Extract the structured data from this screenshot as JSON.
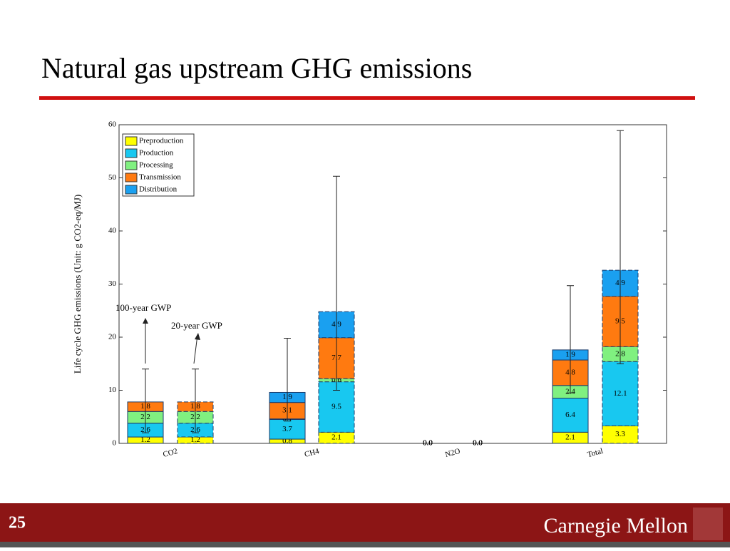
{
  "slide_title": "Natural gas upstream GHG emissions",
  "page_number": "25",
  "logo": "Carnegie Mellon",
  "chart_data": {
    "type": "stacked_bar",
    "ylabel": "Life cycle GHG emissions (Unit: g CO2-eq/MJ)",
    "categories": [
      "CO2",
      null,
      "CH4",
      null,
      "N2O",
      null,
      "Total",
      null
    ],
    "ylim": [
      0,
      60
    ],
    "yticks": [
      0,
      10,
      20,
      30,
      40,
      50,
      60
    ],
    "legend": "upper left",
    "annotations": [
      "100-year GWP",
      "20-year GWP"
    ],
    "series": [
      {
        "name": "Preproduction",
        "color": "#ffff00",
        "values": [
          1.2,
          1.2,
          0.8,
          2.1,
          0,
          0,
          2.1,
          3.3
        ],
        "value_labels": [
          "1.2",
          "1.2",
          "0.8",
          "2.1",
          "0.0",
          "0.0",
          "2.1",
          "3.3"
        ]
      },
      {
        "name": "Production",
        "color": "#18c8f0",
        "values": [
          2.6,
          2.6,
          3.7,
          9.5,
          0,
          0,
          6.4,
          12.1
        ],
        "value_labels": [
          "2.6",
          "2.6",
          "3.7",
          "9.5",
          "0.0",
          "0.0",
          "6.4",
          "12.1"
        ]
      },
      {
        "name": "Processing",
        "color": "#80f080",
        "values": [
          2.2,
          2.2,
          0.1,
          0.6,
          0,
          0,
          2.4,
          2.8
        ],
        "value_labels": [
          "2.2",
          "2.2",
          "0.1",
          "0.6",
          "0.0",
          "0.0",
          "2.4",
          "2.8"
        ]
      },
      {
        "name": "Transmission",
        "color": "#ff7a10",
        "values": [
          1.8,
          1.8,
          3.1,
          7.7,
          0,
          0,
          4.8,
          9.5
        ],
        "value_labels": [
          "1.8",
          "1.8",
          "3.1",
          "7.7",
          "0.0",
          "0.0",
          "4.8",
          "9.5"
        ]
      },
      {
        "name": "Distribution",
        "color": "#1aa0f0",
        "values": [
          null,
          null,
          1.9,
          4.9,
          0,
          0,
          1.9,
          4.9
        ],
        "value_labels": [
          null,
          null,
          "1.9",
          "4.9",
          "0.0",
          "0.0",
          "1.9",
          "4.9"
        ]
      }
    ],
    "error_low": [
      2,
      2,
      4.2,
      10,
      null,
      null,
      9.5,
      15
    ],
    "error_high": [
      14,
      14,
      19.8,
      50.3,
      null,
      null,
      29.7,
      58.9
    ]
  }
}
